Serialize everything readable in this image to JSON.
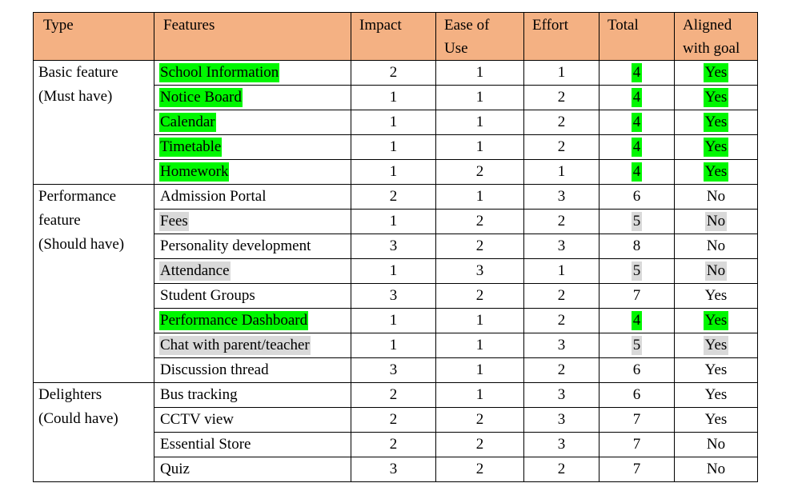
{
  "headers": {
    "type": "Type",
    "features": "Features",
    "impact": "Impact",
    "ease": "Ease of Use",
    "ease_l1": "Ease of",
    "ease_l2": "Use",
    "effort": "Effort",
    "total": "Total",
    "aligned_l1": "Aligned",
    "aligned_l2": "with goal"
  },
  "highlight_colors": {
    "green": "#00f700",
    "grey": "#d9d9d9",
    "header": "#f4b183"
  },
  "groups": [
    {
      "type_lines": [
        "Basic feature",
        "(Must have)"
      ],
      "rows": [
        {
          "feature": "School Information",
          "impact": "2",
          "ease": "1",
          "effort": "1",
          "total": "4",
          "aligned": "Yes",
          "highlight": "green"
        },
        {
          "feature": "Notice Board",
          "impact": "1",
          "ease": "1",
          "effort": "2",
          "total": "4",
          "aligned": "Yes",
          "highlight": "green"
        },
        {
          "feature": "Calendar",
          "impact": "1",
          "ease": "1",
          "effort": "2",
          "total": "4",
          "aligned": "Yes",
          "highlight": "green"
        },
        {
          "feature": "Timetable",
          "impact": "1",
          "ease": "1",
          "effort": "2",
          "total": "4",
          "aligned": "Yes",
          "highlight": "green"
        },
        {
          "feature": "Homework",
          "impact": "1",
          "ease": "2",
          "effort": "1",
          "total": "4",
          "aligned": "Yes",
          "highlight": "green"
        }
      ]
    },
    {
      "type_lines": [
        "Performance",
        "feature",
        "(Should have)"
      ],
      "rows": [
        {
          "feature": "Admission Portal",
          "impact": "2",
          "ease": "1",
          "effort": "3",
          "total": "6",
          "aligned": "No",
          "highlight": "none"
        },
        {
          "feature": "Fees",
          "impact": "1",
          "ease": "2",
          "effort": "2",
          "total": "5",
          "aligned": "No",
          "highlight": "grey"
        },
        {
          "feature": "Personality development",
          "impact": "3",
          "ease": "2",
          "effort": "3",
          "total": "8",
          "aligned": "No",
          "highlight": "none"
        },
        {
          "feature": "Attendance",
          "impact": "1",
          "ease": "3",
          "effort": "1",
          "total": "5",
          "aligned": "No",
          "highlight": "grey"
        },
        {
          "feature": "Student Groups",
          "impact": "3",
          "ease": "2",
          "effort": "2",
          "total": "7",
          "aligned": "Yes",
          "highlight": "none"
        },
        {
          "feature": "Performance Dashboard",
          "impact": "1",
          "ease": "1",
          "effort": "2",
          "total": "4",
          "aligned": "Yes",
          "highlight": "green"
        },
        {
          "feature": "Chat with parent/teacher",
          "impact": "1",
          "ease": "1",
          "effort": "3",
          "total": "5",
          "aligned": "Yes",
          "highlight": "grey"
        },
        {
          "feature": "Discussion thread",
          "impact": "3",
          "ease": "1",
          "effort": "2",
          "total": "6",
          "aligned": "Yes",
          "highlight": "none"
        }
      ]
    },
    {
      "type_lines": [
        "Delighters",
        "(Could have)"
      ],
      "rows": [
        {
          "feature": "Bus tracking",
          "impact": "2",
          "ease": "1",
          "effort": "3",
          "total": "6",
          "aligned": "Yes",
          "highlight": "none"
        },
        {
          "feature": "CCTV view",
          "impact": "2",
          "ease": "2",
          "effort": "3",
          "total": "7",
          "aligned": "Yes",
          "highlight": "none"
        },
        {
          "feature": "Essential Store",
          "impact": "2",
          "ease": "2",
          "effort": "3",
          "total": "7",
          "aligned": "No",
          "highlight": "none"
        },
        {
          "feature": "Quiz",
          "impact": "3",
          "ease": "2",
          "effort": "2",
          "total": "7",
          "aligned": "No",
          "highlight": "none"
        }
      ]
    }
  ]
}
